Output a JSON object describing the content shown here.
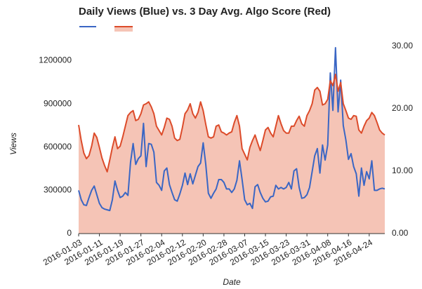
{
  "chart_data": {
    "type": "line",
    "title": "Daily Views (Blue) vs. 3 Day Avg. Algo Score (Red)",
    "xlabel": "Date",
    "ylabel": "Views",
    "x": [
      "2016-01-03",
      "2016-01-04",
      "2016-01-05",
      "2016-01-06",
      "2016-01-07",
      "2016-01-08",
      "2016-01-09",
      "2016-01-10",
      "2016-01-11",
      "2016-01-12",
      "2016-01-13",
      "2016-01-14",
      "2016-01-15",
      "2016-01-16",
      "2016-01-17",
      "2016-01-18",
      "2016-01-19",
      "2016-01-20",
      "2016-01-21",
      "2016-01-22",
      "2016-01-23",
      "2016-01-24",
      "2016-01-25",
      "2016-01-26",
      "2016-01-27",
      "2016-01-28",
      "2016-01-29",
      "2016-01-30",
      "2016-01-31",
      "2016-02-01",
      "2016-02-02",
      "2016-02-03",
      "2016-02-04",
      "2016-02-05",
      "2016-02-06",
      "2016-02-07",
      "2016-02-08",
      "2016-02-09",
      "2016-02-10",
      "2016-02-11",
      "2016-02-12",
      "2016-02-13",
      "2016-02-14",
      "2016-02-15",
      "2016-02-16",
      "2016-02-17",
      "2016-02-18",
      "2016-02-19",
      "2016-02-20",
      "2016-02-21",
      "2016-02-22",
      "2016-02-23",
      "2016-02-24",
      "2016-02-25",
      "2016-02-26",
      "2016-02-27",
      "2016-02-28",
      "2016-02-29",
      "2016-03-01",
      "2016-03-02",
      "2016-03-03",
      "2016-03-04",
      "2016-03-05",
      "2016-03-06",
      "2016-03-07",
      "2016-03-08",
      "2016-03-09",
      "2016-03-10",
      "2016-03-11",
      "2016-03-12",
      "2016-03-13",
      "2016-03-14",
      "2016-03-15",
      "2016-03-16",
      "2016-03-17",
      "2016-03-18",
      "2016-03-19",
      "2016-03-20",
      "2016-03-21",
      "2016-03-22",
      "2016-03-23",
      "2016-03-24",
      "2016-03-25",
      "2016-03-26",
      "2016-03-27",
      "2016-03-28",
      "2016-03-29",
      "2016-03-30",
      "2016-03-31",
      "2016-04-01",
      "2016-04-02",
      "2016-04-03",
      "2016-04-04",
      "2016-04-05",
      "2016-04-06",
      "2016-04-07",
      "2016-04-08",
      "2016-04-09",
      "2016-04-10",
      "2016-04-11",
      "2016-04-12",
      "2016-04-13",
      "2016-04-14",
      "2016-04-15",
      "2016-04-16",
      "2016-04-17",
      "2016-04-18",
      "2016-04-19",
      "2016-04-20",
      "2016-04-21",
      "2016-04-22",
      "2016-04-23",
      "2016-04-24",
      "2016-04-25",
      "2016-04-26",
      "2016-04-27",
      "2016-04-28",
      "2016-04-29",
      "2016-04-30"
    ],
    "xlim": [
      "2016-01-03",
      "2016-04-30"
    ],
    "xticks": [
      "2016-01-03",
      "2016-01-11",
      "2016-01-19",
      "2016-01-27",
      "2016-02-04",
      "2016-02-12",
      "2016-02-20",
      "2016-02-28",
      "2016-03-07",
      "2016-03-15",
      "2016-03-23",
      "2016-03-31",
      "2016-04-08",
      "2016-04-16",
      "2016-04-24"
    ],
    "ylim": [
      0,
      1300000
    ],
    "yticks": [
      0,
      300000,
      600000,
      900000,
      1200000
    ],
    "y2lim": [
      0,
      30
    ],
    "y2ticks": [
      {
        "value": 0,
        "label": "0.00"
      },
      {
        "value": 10,
        "label": "10.00"
      },
      {
        "value": 20,
        "label": "20.00"
      },
      {
        "value": 30,
        "label": "30.00"
      }
    ],
    "series": [
      {
        "color": "#3a66c4",
        "values": [
          300000,
          235000,
          200000,
          195000,
          250000,
          300000,
          330000,
          270000,
          210000,
          180000,
          170000,
          165000,
          160000,
          235000,
          365000,
          300000,
          250000,
          260000,
          285000,
          265000,
          495000,
          625000,
          480000,
          520000,
          540000,
          765000,
          465000,
          625000,
          620000,
          565000,
          355000,
          335000,
          300000,
          435000,
          455000,
          340000,
          285000,
          235000,
          225000,
          275000,
          335000,
          420000,
          340000,
          415000,
          345000,
          405000,
          465000,
          490000,
          630000,
          480000,
          280000,
          245000,
          280000,
          310000,
          375000,
          375000,
          355000,
          310000,
          310000,
          285000,
          310000,
          370000,
          505000,
          375000,
          235000,
          200000,
          210000,
          175000,
          325000,
          340000,
          285000,
          245000,
          220000,
          225000,
          255000,
          260000,
          335000,
          310000,
          320000,
          310000,
          320000,
          355000,
          310000,
          435000,
          450000,
          320000,
          245000,
          250000,
          270000,
          320000,
          430000,
          540000,
          590000,
          420000,
          615000,
          510000,
          615000,
          1115000,
          855000,
          1290000,
          845000,
          1065000,
          750000,
          650000,
          515000,
          555000,
          465000,
          415000,
          260000,
          455000,
          335000,
          430000,
          380000,
          505000,
          300000,
          300000,
          310000,
          315000,
          310000
        ]
      },
      {
        "color": "#dc4b2a",
        "fill": "#f5c4b6",
        "axis": "y2",
        "values": [
          17.4,
          14.9,
          12.9,
          12.0,
          12.5,
          14.0,
          16.1,
          15.4,
          13.8,
          12.1,
          10.9,
          9.9,
          11.8,
          13.8,
          15.5,
          13.6,
          14.0,
          15.5,
          17.2,
          18.9,
          19.4,
          19.7,
          18.1,
          18.3,
          19.2,
          20.6,
          20.8,
          21.1,
          20.3,
          19.2,
          17.2,
          16.5,
          15.8,
          17.0,
          18.5,
          18.3,
          17.2,
          15.3,
          14.9,
          15.1,
          17.0,
          19.2,
          19.8,
          20.8,
          19.2,
          18.5,
          19.4,
          21.1,
          19.7,
          17.5,
          15.5,
          15.3,
          15.5,
          17.2,
          17.4,
          16.3,
          16.1,
          15.8,
          16.1,
          16.3,
          17.8,
          18.9,
          17.2,
          13.6,
          12.7,
          11.8,
          13.8,
          14.9,
          15.8,
          14.5,
          13.3,
          14.9,
          16.6,
          17.0,
          16.1,
          15.5,
          17.2,
          18.9,
          17.6,
          16.5,
          16.1,
          16.1,
          17.2,
          17.2,
          18.1,
          18.8,
          17.6,
          17.2,
          18.9,
          19.7,
          20.8,
          23.0,
          23.4,
          22.8,
          20.6,
          20.8,
          21.5,
          24.5,
          23.7,
          25.5,
          22.8,
          24.2,
          20.8,
          19.7,
          18.5,
          18.3,
          18.9,
          18.8,
          16.6,
          16.1,
          17.2,
          18.1,
          18.5,
          19.4,
          18.9,
          17.8,
          16.6,
          16.1,
          15.8
        ]
      }
    ]
  }
}
